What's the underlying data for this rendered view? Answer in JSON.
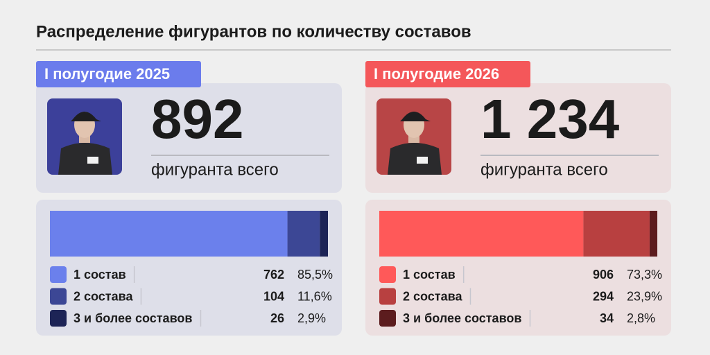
{
  "title": "Распределение фигурантов по количеству составов",
  "panels": [
    {
      "period": "I полугодие 2025",
      "total": 892,
      "total_caption": "фигуранта всего",
      "tag_color": "#6b7cec",
      "card_color": "#dedfe9",
      "avatar_color": "#3c409a",
      "categories": [
        "1 состав",
        "2 состава",
        "3 и более составов"
      ],
      "values": [
        762,
        104,
        26
      ],
      "colors": [
        "#6b80ec",
        "#3c4795",
        "#1d2456"
      ],
      "shares": [
        85.5,
        11.6,
        2.9
      ],
      "share_labels": [
        "85,5%",
        "11,6%",
        "2,9%"
      ]
    },
    {
      "period": "I полугодие 2026",
      "total": {
        "value": 1234,
        "label": "1 234"
      },
      "total_caption": "фигуранта всего",
      "tag_color": "#f4575a",
      "card_color": "#ecdfe0",
      "avatar_color": "#b84546",
      "categories": [
        "1 состав",
        "2 состава",
        "3 и более составов"
      ],
      "values": [
        906,
        294,
        34
      ],
      "colors": [
        "#ff5959",
        "#b84040",
        "#5c1c1e"
      ],
      "shares": [
        73.3,
        23.9,
        2.8
      ],
      "share_labels": [
        "73,3%",
        "23,9%",
        "2,8%"
      ]
    }
  ]
}
